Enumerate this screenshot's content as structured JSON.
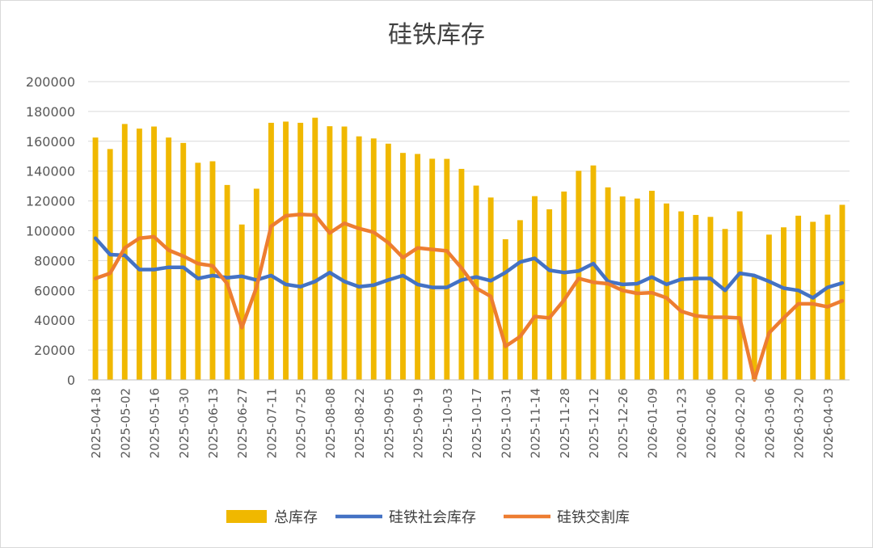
{
  "chart_data": {
    "type": "bar",
    "title": "硅铁库存",
    "ylim": [
      0,
      200000
    ],
    "y_ticks": [
      "0",
      "20000",
      "40000",
      "60000",
      "80000",
      "100000",
      "120000",
      "140000",
      "160000",
      "180000",
      "200000"
    ],
    "grid": true,
    "legend_position": "bottom",
    "x": [
      "2025-04-18",
      "2025-04-25",
      "2025-05-02",
      "2025-05-09",
      "2025-05-16",
      "2025-05-23",
      "2025-05-30",
      "2025-06-06",
      "2025-06-13",
      "2025-06-20",
      "2025-06-27",
      "2025-07-04",
      "2025-07-11",
      "2025-07-18",
      "2025-07-25",
      "2025-08-01",
      "2025-08-08",
      "2025-08-15",
      "2025-08-22",
      "2025-08-29",
      "2025-09-05",
      "2025-09-12",
      "2025-09-19",
      "2025-09-26",
      "2025-10-03",
      "2025-10-10",
      "2025-10-17",
      "2025-10-24",
      "2025-10-31",
      "2025-11-07",
      "2025-11-14",
      "2025-11-21",
      "2025-11-28",
      "2025-12-05",
      "2025-12-12",
      "2025-12-19",
      "2025-12-26",
      "2026-01-02",
      "2026-01-09",
      "2026-01-16",
      "2026-01-23",
      "2026-01-30",
      "2026-02-06",
      "2026-02-13",
      "2026-02-20",
      "2026-02-27",
      "2026-03-06",
      "2026-03-13",
      "2026-03-20",
      "2026-03-27",
      "2026-04-03",
      "2026-04-10"
    ],
    "x_tick_labels": [
      "2025-04-18",
      "2025-05-02",
      "2025-05-16",
      "2025-05-30",
      "2025-06-13",
      "2025-06-27",
      "2025-07-11",
      "2025-07-25",
      "2025-08-08",
      "2025-08-22",
      "2025-09-05",
      "2025-09-19",
      "2025-10-03",
      "2025-10-17",
      "2025-10-31",
      "2025-11-14",
      "2025-11-28",
      "2025-12-12",
      "2025-12-26",
      "2026-01-09",
      "2026-01-23",
      "2026-02-06",
      "2026-02-20",
      "2026-03-06",
      "2026-03-20",
      "2026-04-03"
    ],
    "series": [
      {
        "name": "总库存",
        "type": "bar",
        "color": "#f0b800",
        "values": [
          162500,
          154800,
          171600,
          168500,
          169900,
          162500,
          158900,
          145600,
          146600,
          130700,
          104200,
          128200,
          172400,
          173200,
          172400,
          175800,
          170100,
          169900,
          163300,
          161900,
          158400,
          152200,
          151500,
          148300,
          148200,
          141500,
          130300,
          122300,
          94300,
          107100,
          123200,
          114400,
          126300,
          140200,
          143800,
          129100,
          123000,
          121600,
          126800,
          118300,
          113000,
          110600,
          109300,
          101200,
          113000,
          69300,
          97400,
          102300,
          110100,
          106000,
          110800,
          117400
        ]
      },
      {
        "name": "硅铁社会库存",
        "type": "line",
        "color": "#4472c4",
        "values": [
          95000,
          84000,
          83500,
          74000,
          74000,
          75500,
          75500,
          68000,
          70000,
          68500,
          69500,
          67000,
          70000,
          64000,
          62500,
          66000,
          72000,
          66000,
          62500,
          63500,
          67000,
          70000,
          64000,
          62000,
          62000,
          67000,
          69000,
          66500,
          72000,
          79000,
          81500,
          73500,
          72000,
          73000,
          78000,
          66000,
          64000,
          64500,
          69000,
          64000,
          67500,
          68000,
          68000,
          60000,
          71500,
          70000,
          66000,
          61500,
          60000,
          55000,
          62000,
          65000
        ]
      },
      {
        "name": "硅铁交割库",
        "type": "line",
        "color": "#ed7d31",
        "values": [
          68000,
          71500,
          88500,
          95000,
          96000,
          87000,
          83000,
          78000,
          76500,
          64500,
          35000,
          62000,
          103000,
          110000,
          111000,
          110500,
          98500,
          105000,
          101500,
          99000,
          92000,
          82000,
          88500,
          87500,
          86500,
          75000,
          61500,
          56000,
          22500,
          29000,
          42500,
          41500,
          53500,
          68000,
          65500,
          64500,
          60000,
          58000,
          58500,
          55000,
          46000,
          43000,
          42000,
          42000,
          41500,
          0,
          31500,
          41500,
          51000,
          51000,
          49000,
          53000
        ]
      }
    ]
  }
}
